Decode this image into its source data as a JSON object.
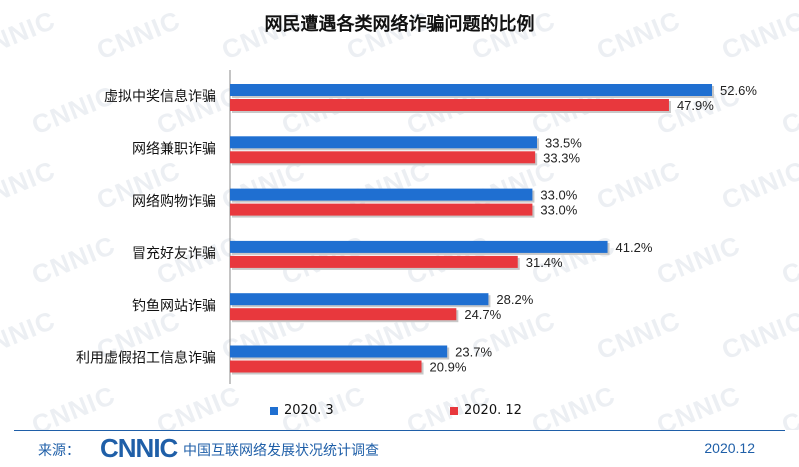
{
  "watermark": "CNNIC",
  "colors": {
    "series1": "#1f6fd1",
    "series2": "#e8383d",
    "axis": "#888888",
    "footer": "#1f5fa8"
  },
  "chart_data": {
    "type": "bar",
    "orientation": "horizontal",
    "title": "网民遭遇各类网络诈骗问题的比例",
    "categories": [
      "虚拟中奖信息诈骗",
      "网络兼职诈骗",
      "网络购物诈骗",
      "冒充好友诈骗",
      "钓鱼网站诈骗",
      "利用虚假招工信息诈骗"
    ],
    "series": [
      {
        "name": "2020. 3",
        "values": [
          52.6,
          33.5,
          33.0,
          41.2,
          28.2,
          23.7
        ],
        "labels": [
          "52.6%",
          "33.5%",
          "33.0%",
          "41.2%",
          "28.2%",
          "23.7%"
        ]
      },
      {
        "name": "2020. 12",
        "values": [
          47.9,
          33.3,
          33.0,
          31.4,
          24.7,
          20.9
        ],
        "labels": [
          "47.9%",
          "33.3%",
          "33.0%",
          "31.4%",
          "24.7%",
          "20.9%"
        ]
      }
    ],
    "value_unit": "%",
    "xlim": [
      0,
      55.6
    ],
    "legend_position": "bottom"
  },
  "footer": {
    "source_label": "来源：",
    "logo_text": "CNNIC",
    "org_name": "中国互联网络发展状况统计调查",
    "date": "2020.12"
  }
}
